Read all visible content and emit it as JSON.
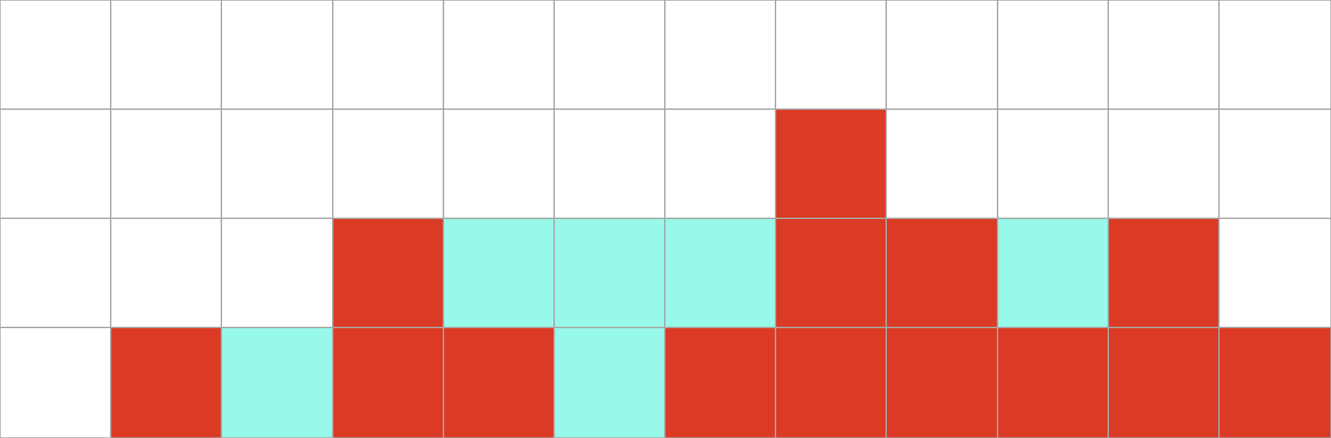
{
  "board": {
    "rows": 4,
    "cols": 12,
    "palette": {
      "0": "#ffffff",
      "1": "#db3b25",
      "2": "#98f8e9",
      "grid_line": "#a7a7a7"
    },
    "cells": [
      [
        0,
        0,
        0,
        0,
        0,
        0,
        0,
        0,
        0,
        0,
        0,
        0
      ],
      [
        0,
        0,
        0,
        0,
        0,
        0,
        0,
        1,
        0,
        0,
        0,
        0
      ],
      [
        0,
        0,
        0,
        1,
        2,
        2,
        2,
        1,
        1,
        2,
        1,
        0
      ],
      [
        0,
        1,
        2,
        1,
        1,
        2,
        1,
        1,
        1,
        1,
        1,
        1
      ]
    ]
  }
}
